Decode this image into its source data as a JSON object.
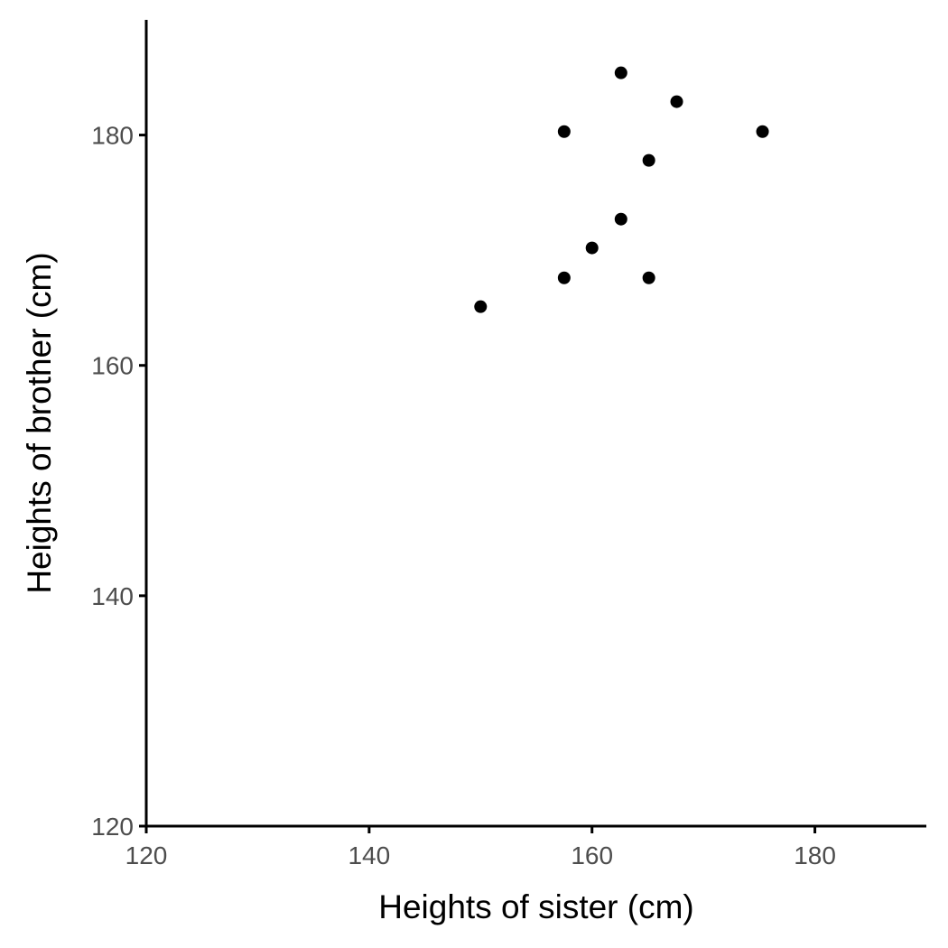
{
  "chart_data": {
    "type": "scatter",
    "title": "",
    "xlabel": "Heights of sister (cm)",
    "ylabel": "Heights of brother (cm)",
    "xlim": [
      120,
      190
    ],
    "ylim": [
      120,
      190
    ],
    "x_ticks": [
      "120",
      "140",
      "160",
      "180"
    ],
    "y_ticks": [
      "120",
      "140",
      "160",
      "180"
    ],
    "grid": false,
    "point_color": "#000000",
    "axis_color": "#000000",
    "points": [
      {
        "x": 150.0,
        "y": 165.1
      },
      {
        "x": 157.5,
        "y": 167.6
      },
      {
        "x": 157.5,
        "y": 180.3
      },
      {
        "x": 160.0,
        "y": 170.2
      },
      {
        "x": 162.6,
        "y": 172.7
      },
      {
        "x": 162.6,
        "y": 185.4
      },
      {
        "x": 165.1,
        "y": 167.6
      },
      {
        "x": 165.1,
        "y": 177.8
      },
      {
        "x": 167.6,
        "y": 182.9
      },
      {
        "x": 175.3,
        "y": 180.3
      }
    ]
  }
}
